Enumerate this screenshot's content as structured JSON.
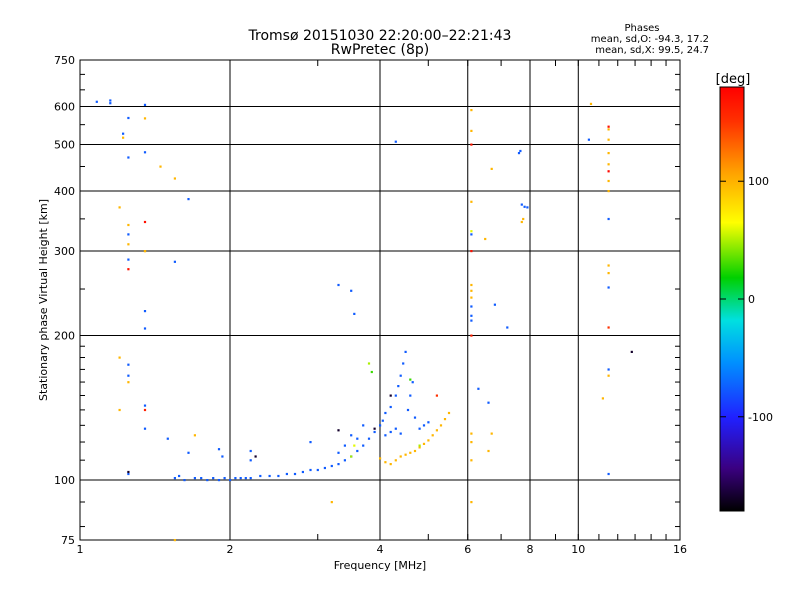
{
  "chart_data": {
    "type": "scatter",
    "title": "Tromsø 20151030 22:20:00–22:21:43",
    "subtitle": "RwPretec (8p)",
    "stats_title": "Phases",
    "stats": [
      "mean, sd,O: -94.3, 17.2",
      "mean, sd,X:  99.5, 24.7"
    ],
    "xlabel": "Frequency [MHz]",
    "ylabel": "Stationary phase Virtual Height [km]",
    "xscale": "log",
    "yscale": "log",
    "xlim": [
      1,
      16
    ],
    "ylim": [
      75,
      750
    ],
    "xticks": [
      "1",
      "2",
      "4",
      "6",
      "8",
      "10",
      "16"
    ],
    "yticks": [
      "75",
      "100",
      "200",
      "300",
      "400",
      "500",
      "600",
      "750"
    ],
    "grid": true,
    "colorbar": {
      "label": "[deg]",
      "range": [
        -180,
        180
      ],
      "ticks": [
        "100",
        "0",
        "-100"
      ],
      "tick_values": [
        100,
        0,
        -100
      ]
    },
    "series": [
      {
        "name": "",
        "mode": "O",
        "phase_mean": -94.3,
        "phase_sd": 17.2,
        "points": [
          [
            1.7,
            101
          ],
          [
            1.75,
            101
          ],
          [
            1.8,
            100
          ],
          [
            1.85,
            101
          ],
          [
            1.9,
            100
          ],
          [
            1.95,
            101
          ],
          [
            2.0,
            100
          ],
          [
            2.05,
            101
          ],
          [
            2.1,
            101
          ],
          [
            2.15,
            101
          ],
          [
            2.2,
            101
          ],
          [
            2.3,
            102
          ],
          [
            2.4,
            102
          ],
          [
            2.5,
            102
          ],
          [
            2.6,
            103
          ],
          [
            2.7,
            103
          ],
          [
            2.8,
            104
          ],
          [
            2.9,
            105
          ],
          [
            3.0,
            105
          ],
          [
            3.1,
            106
          ],
          [
            3.2,
            107
          ],
          [
            3.3,
            108
          ],
          [
            3.4,
            110
          ],
          [
            3.5,
            112
          ],
          [
            3.6,
            115
          ],
          [
            3.7,
            118
          ],
          [
            3.8,
            122
          ],
          [
            3.9,
            126
          ],
          [
            4.0,
            130
          ],
          [
            4.05,
            133
          ],
          [
            4.1,
            138
          ],
          [
            4.2,
            142
          ],
          [
            4.3,
            150
          ],
          [
            4.35,
            157
          ],
          [
            4.4,
            165
          ],
          [
            4.45,
            175
          ],
          [
            4.5,
            185
          ],
          [
            4.55,
            140
          ],
          [
            4.6,
            150
          ],
          [
            4.65,
            160
          ],
          [
            4.7,
            135
          ],
          [
            4.8,
            128
          ],
          [
            4.9,
            130
          ],
          [
            5.0,
            132
          ],
          [
            4.3,
            128
          ],
          [
            4.4,
            125
          ],
          [
            4.2,
            126
          ],
          [
            4.1,
            124
          ],
          [
            1.55,
            101
          ],
          [
            1.58,
            102
          ],
          [
            1.62,
            100
          ],
          [
            1.9,
            116
          ],
          [
            1.93,
            112
          ],
          [
            2.2,
            110
          ],
          [
            2.2,
            115
          ],
          [
            2.9,
            120
          ],
          [
            3.3,
            114
          ],
          [
            3.4,
            118
          ],
          [
            3.5,
            124
          ],
          [
            3.7,
            130
          ],
          [
            3.6,
            122
          ],
          [
            1.08,
            614
          ],
          [
            1.15,
            618
          ],
          [
            1.15,
            610
          ],
          [
            1.22,
            527
          ],
          [
            1.25,
            568
          ],
          [
            1.35,
            605
          ],
          [
            1.35,
            482
          ],
          [
            1.25,
            470
          ],
          [
            1.25,
            325
          ],
          [
            1.25,
            288
          ],
          [
            1.35,
            225
          ],
          [
            1.35,
            207
          ],
          [
            1.55,
            285
          ],
          [
            1.65,
            385
          ],
          [
            1.25,
            103
          ],
          [
            1.25,
            165
          ],
          [
            1.25,
            174
          ],
          [
            1.35,
            143
          ],
          [
            1.35,
            128
          ],
          [
            1.5,
            122
          ],
          [
            1.65,
            114
          ],
          [
            3.3,
            255
          ],
          [
            3.5,
            248
          ],
          [
            3.55,
            222
          ],
          [
            4.3,
            507
          ],
          [
            6.1,
            325
          ],
          [
            6.1,
            230
          ],
          [
            6.1,
            215
          ],
          [
            6.1,
            220
          ],
          [
            6.8,
            232
          ],
          [
            7.2,
            208
          ],
          [
            7.6,
            480
          ],
          [
            7.65,
            485
          ],
          [
            7.8,
            371
          ],
          [
            7.9,
            370
          ],
          [
            7.7,
            375
          ],
          [
            10.5,
            512
          ],
          [
            11.5,
            350
          ],
          [
            11.5,
            252
          ],
          [
            11.5,
            170
          ],
          [
            11.5,
            103
          ],
          [
            6.6,
            145
          ],
          [
            6.3,
            155
          ]
        ]
      },
      {
        "name": "",
        "mode": "X",
        "phase_mean": 99.5,
        "phase_sd": 24.7,
        "points": [
          [
            4.4,
            112
          ],
          [
            4.5,
            113
          ],
          [
            4.6,
            114
          ],
          [
            4.7,
            115
          ],
          [
            4.8,
            117
          ],
          [
            4.9,
            119
          ],
          [
            5.0,
            121
          ],
          [
            5.1,
            124
          ],
          [
            5.2,
            127
          ],
          [
            5.3,
            130
          ],
          [
            5.4,
            134
          ],
          [
            5.5,
            138
          ],
          [
            4.2,
            108
          ],
          [
            4.3,
            110
          ],
          [
            4.1,
            109
          ],
          [
            4.0,
            111
          ],
          [
            1.22,
            517
          ],
          [
            1.35,
            567
          ],
          [
            1.45,
            450
          ],
          [
            1.2,
            370
          ],
          [
            1.25,
            340
          ],
          [
            1.35,
            300
          ],
          [
            1.25,
            310
          ],
          [
            1.55,
            425
          ],
          [
            1.7,
            124
          ],
          [
            1.2,
            140
          ],
          [
            1.2,
            180
          ],
          [
            1.25,
            160
          ],
          [
            3.2,
            90
          ],
          [
            6.7,
            445
          ],
          [
            7.7,
            345
          ],
          [
            7.75,
            350
          ],
          [
            10.6,
            608
          ],
          [
            11.5,
            538
          ],
          [
            11.5,
            512
          ],
          [
            11.5,
            480
          ],
          [
            11.5,
            455
          ],
          [
            11.5,
            420
          ],
          [
            11.5,
            400
          ],
          [
            11.5,
            165
          ],
          [
            11.2,
            148
          ],
          [
            6.1,
            590
          ],
          [
            6.1,
            534
          ],
          [
            6.1,
            380
          ],
          [
            6.1,
            248
          ],
          [
            6.1,
            240
          ],
          [
            6.1,
            255
          ],
          [
            6.1,
            90
          ],
          [
            6.1,
            110
          ],
          [
            6.1,
            120
          ],
          [
            6.1,
            125
          ],
          [
            6.5,
            318
          ],
          [
            6.6,
            115
          ],
          [
            6.7,
            125
          ],
          [
            1.55,
            75
          ],
          [
            1.35,
            300
          ],
          [
            11.5,
            280
          ],
          [
            11.5,
            270
          ]
        ]
      }
    ],
    "colored_points": [
      [
        1.25,
        275,
        170
      ],
      [
        1.35,
        345,
        170
      ],
      [
        1.35,
        140,
        160
      ],
      [
        11.5,
        545,
        170
      ],
      [
        11.5,
        440,
        175
      ],
      [
        11.5,
        208,
        150
      ],
      [
        6.1,
        300,
        170
      ],
      [
        6.1,
        500,
        165
      ],
      [
        6.1,
        200,
        160
      ],
      [
        5.2,
        150,
        150
      ],
      [
        12.8,
        185,
        -170
      ],
      [
        3.3,
        127,
        -170
      ],
      [
        3.9,
        128,
        -170
      ],
      [
        2.25,
        112,
        -170
      ],
      [
        4.2,
        150,
        -170
      ],
      [
        1.25,
        104,
        -170
      ],
      [
        6.1,
        330,
        60
      ],
      [
        3.8,
        175,
        50
      ],
      [
        3.85,
        168,
        30
      ],
      [
        4.6,
        162,
        30
      ],
      [
        4.8,
        118,
        50
      ],
      [
        3.5,
        112,
        50
      ],
      [
        3.55,
        118,
        60
      ]
    ]
  }
}
